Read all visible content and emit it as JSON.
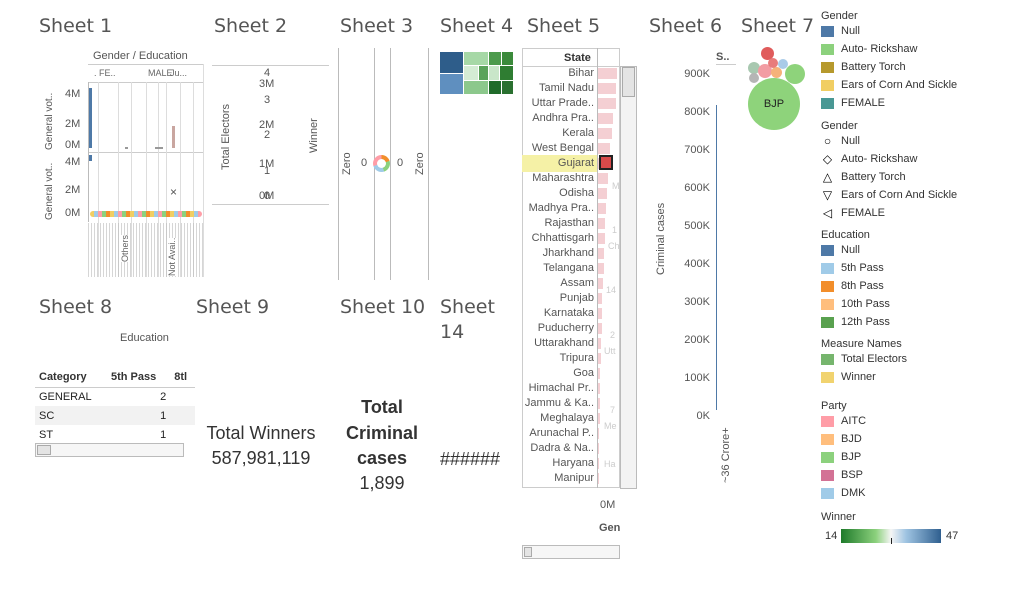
{
  "sheets": {
    "s1": "Sheet 1",
    "s2": "Sheet 2",
    "s3": "Sheet 3",
    "s4": "Sheet 4",
    "s5": "Sheet 5",
    "s6": "Sheet 6",
    "s7": "Sheet 7",
    "s8": "Sheet 8",
    "s9": "Sheet 9",
    "s10": "Sheet 10",
    "s14a": "Sheet",
    "s14b": "14"
  },
  "sheet1": {
    "header": "Gender / Education",
    "sub_headers": [
      ". FE..",
      "MALE",
      "Ju..."
    ],
    "axis_top": "General vot..",
    "axis_bottom": "General vot..",
    "ticks_top": [
      "4M",
      "2M",
      "0M"
    ],
    "ticks_bottom": [
      "4M",
      "2M",
      "0M"
    ],
    "x_labels": [
      "Others",
      "Not Avai.."
    ],
    "marker": "×"
  },
  "sheet2": {
    "axis_left": "Total Electors",
    "axis_right": "Winner",
    "ticks_a": [
      "4",
      "3",
      "2",
      "1",
      "0"
    ],
    "ticks_b": [
      "3M",
      "2M",
      "1M",
      "0M"
    ]
  },
  "sheet3": {
    "axis_left": "Zero",
    "axis_right": "Zero",
    "value_left": "0",
    "value_right": "0"
  },
  "sheet5": {
    "header": "State",
    "states": [
      "Bihar",
      "Tamil Nadu",
      "Uttar Prade..",
      "Andhra Pra..",
      "Kerala",
      "West Bengal",
      "Gujarat",
      "Maharashtra",
      "Odisha",
      "Madhya Pra..",
      "Rajasthan",
      "Chhattisgarh",
      "Jharkhand",
      "Telangana",
      "Assam",
      "Punjab",
      "Karnataka",
      "Puducherry",
      "Uttarakhand",
      "Tripura",
      "Goa",
      "Himachal Pr..",
      "Jammu & Ka..",
      "Meghalaya",
      "Arunachal P..",
      "Dadra & Na..",
      "Haryana",
      "Manipur"
    ],
    "highlighted": "Gujarat",
    "bar_fraction": [
      0.95,
      0.9,
      0.88,
      0.75,
      0.68,
      0.62,
      0.58,
      0.5,
      0.44,
      0.4,
      0.36,
      0.33,
      0.3,
      0.28,
      0.25,
      0.22,
      0.2,
      0.18,
      0.16,
      0.14,
      0.12,
      0.1,
      0.09,
      0.08,
      0.07,
      0.06,
      0.05,
      0.04
    ],
    "faded_labels": [
      "1",
      "Ch",
      "14",
      "2",
      "Utt",
      "7",
      "Me",
      "Ha",
      "M"
    ],
    "bottom_tick": "0M",
    "bottom_label": "Gen"
  },
  "sheet6": {
    "header": "S..",
    "axis": "Criminal cases",
    "ticks": [
      "900K",
      "800K",
      "700K",
      "600K",
      "500K",
      "400K",
      "300K",
      "200K",
      "100K",
      "0K"
    ],
    "x_label": "~36 Crore+"
  },
  "sheet7": {
    "bubble_label": "BJP",
    "colors": {
      "bjp": "#8ed37b",
      "red": "#e05b5b",
      "pink": "#f29ca3",
      "orange": "#f5b27a",
      "lightblue": "#a9cbe8",
      "grey": "#b5b5b5",
      "green": "#8ed37b"
    }
  },
  "sheet8": {
    "header": "Education",
    "columns": [
      "Category",
      "5th Pass",
      "8tl"
    ],
    "rows": [
      {
        "category": "GENERAL",
        "value": "2"
      },
      {
        "category": "SC",
        "value": "1"
      },
      {
        "category": "ST",
        "value": "1"
      }
    ]
  },
  "sheet9": {
    "label": "Total Winners",
    "value": "587,981,119"
  },
  "sheet10": {
    "label_l1": "Total",
    "label_l2": "Criminal",
    "label_l3": "cases",
    "value": "1,899"
  },
  "sheet14": {
    "value": "######"
  },
  "legends": {
    "gender_color": {
      "title": "Gender",
      "items": [
        {
          "label": "Null",
          "color": "#4e79a7"
        },
        {
          "label": "Auto- Rickshaw",
          "color": "#8cd17d"
        },
        {
          "label": "Battery Torch",
          "color": "#b6992d"
        },
        {
          "label": "Ears of Corn And Sickle",
          "color": "#f1ce63"
        },
        {
          "label": "FEMALE",
          "color": "#499894"
        }
      ]
    },
    "gender_shape": {
      "title": "Gender",
      "items": [
        {
          "label": "Null",
          "shape": "○"
        },
        {
          "label": "Auto- Rickshaw",
          "shape": "◇"
        },
        {
          "label": "Battery Torch",
          "shape": "△"
        },
        {
          "label": "Ears of Corn And Sickle",
          "shape": "▽"
        },
        {
          "label": "FEMALE",
          "shape": "◁"
        }
      ]
    },
    "education": {
      "title": "Education",
      "items": [
        {
          "label": "Null",
          "color": "#4e79a7"
        },
        {
          "label": "5th Pass",
          "color": "#a0cbe8"
        },
        {
          "label": "8th Pass",
          "color": "#f28e2b"
        },
        {
          "label": "10th Pass",
          "color": "#ffbe7d"
        },
        {
          "label": "12th Pass",
          "color": "#59a14f"
        }
      ]
    },
    "measure_names": {
      "title": "Measure Names",
      "items": [
        {
          "label": "Total Electors",
          "color": "#76b56d"
        },
        {
          "label": "Winner",
          "color": "#f1d36f"
        }
      ]
    },
    "party": {
      "title": "Party",
      "items": [
        {
          "label": "AITC",
          "color": "#ff9da7"
        },
        {
          "label": "BJD",
          "color": "#ffbe7d"
        },
        {
          "label": "BJP",
          "color": "#8cd17d"
        },
        {
          "label": "BSP",
          "color": "#d37295"
        },
        {
          "label": "DMK",
          "color": "#a0cbe8"
        }
      ]
    },
    "winner": {
      "title": "Winner",
      "min": "14",
      "max": "47"
    }
  }
}
